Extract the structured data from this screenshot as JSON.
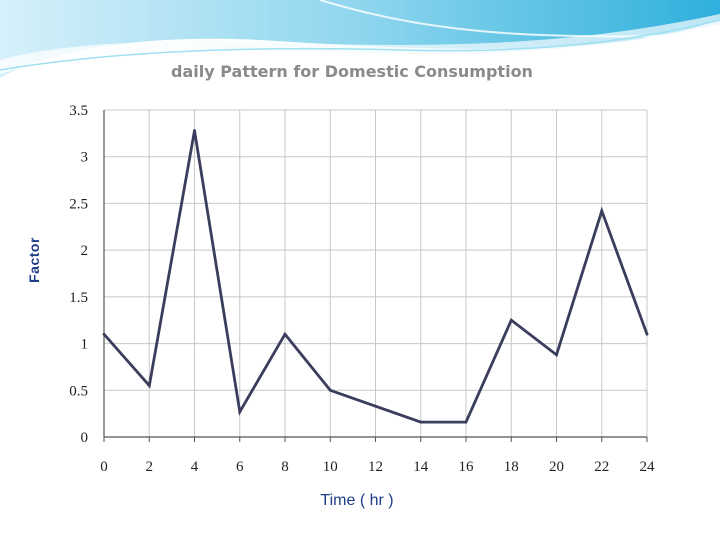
{
  "colors": {
    "banner_light": "#e3f4fb",
    "banner_mid": "#7fd0ea",
    "banner_dark": "#2aa9d6",
    "line": "#3a3d5c",
    "grid": "#c8c8c8",
    "axis": "#555555",
    "title": "#8a8a8a",
    "axis_label": "#1f3c88"
  },
  "chart_data": {
    "type": "line",
    "title": "daily Pattern for Domestic Consumption",
    "xlabel": "Time ( hr )",
    "ylabel": "Factor",
    "x": [
      0,
      2,
      4,
      6,
      8,
      10,
      12,
      14,
      16,
      18,
      20,
      22,
      24
    ],
    "xticks": [
      "0",
      "2",
      "4",
      "6",
      "8",
      "10",
      "12",
      "14",
      "16",
      "18",
      "20",
      "22",
      "24"
    ],
    "yticks": [
      "0",
      "0.5",
      "1",
      "1.5",
      "2",
      "2.5",
      "3",
      "3.5"
    ],
    "xlim": [
      0,
      24
    ],
    "ylim": [
      0,
      3.5
    ],
    "grid": true,
    "series": [
      {
        "values": [
          1.1,
          0.55,
          3.28,
          0.27,
          1.1,
          0.5,
          0.33,
          0.16,
          0.16,
          1.25,
          0.88,
          2.42,
          1.1
        ]
      }
    ]
  }
}
